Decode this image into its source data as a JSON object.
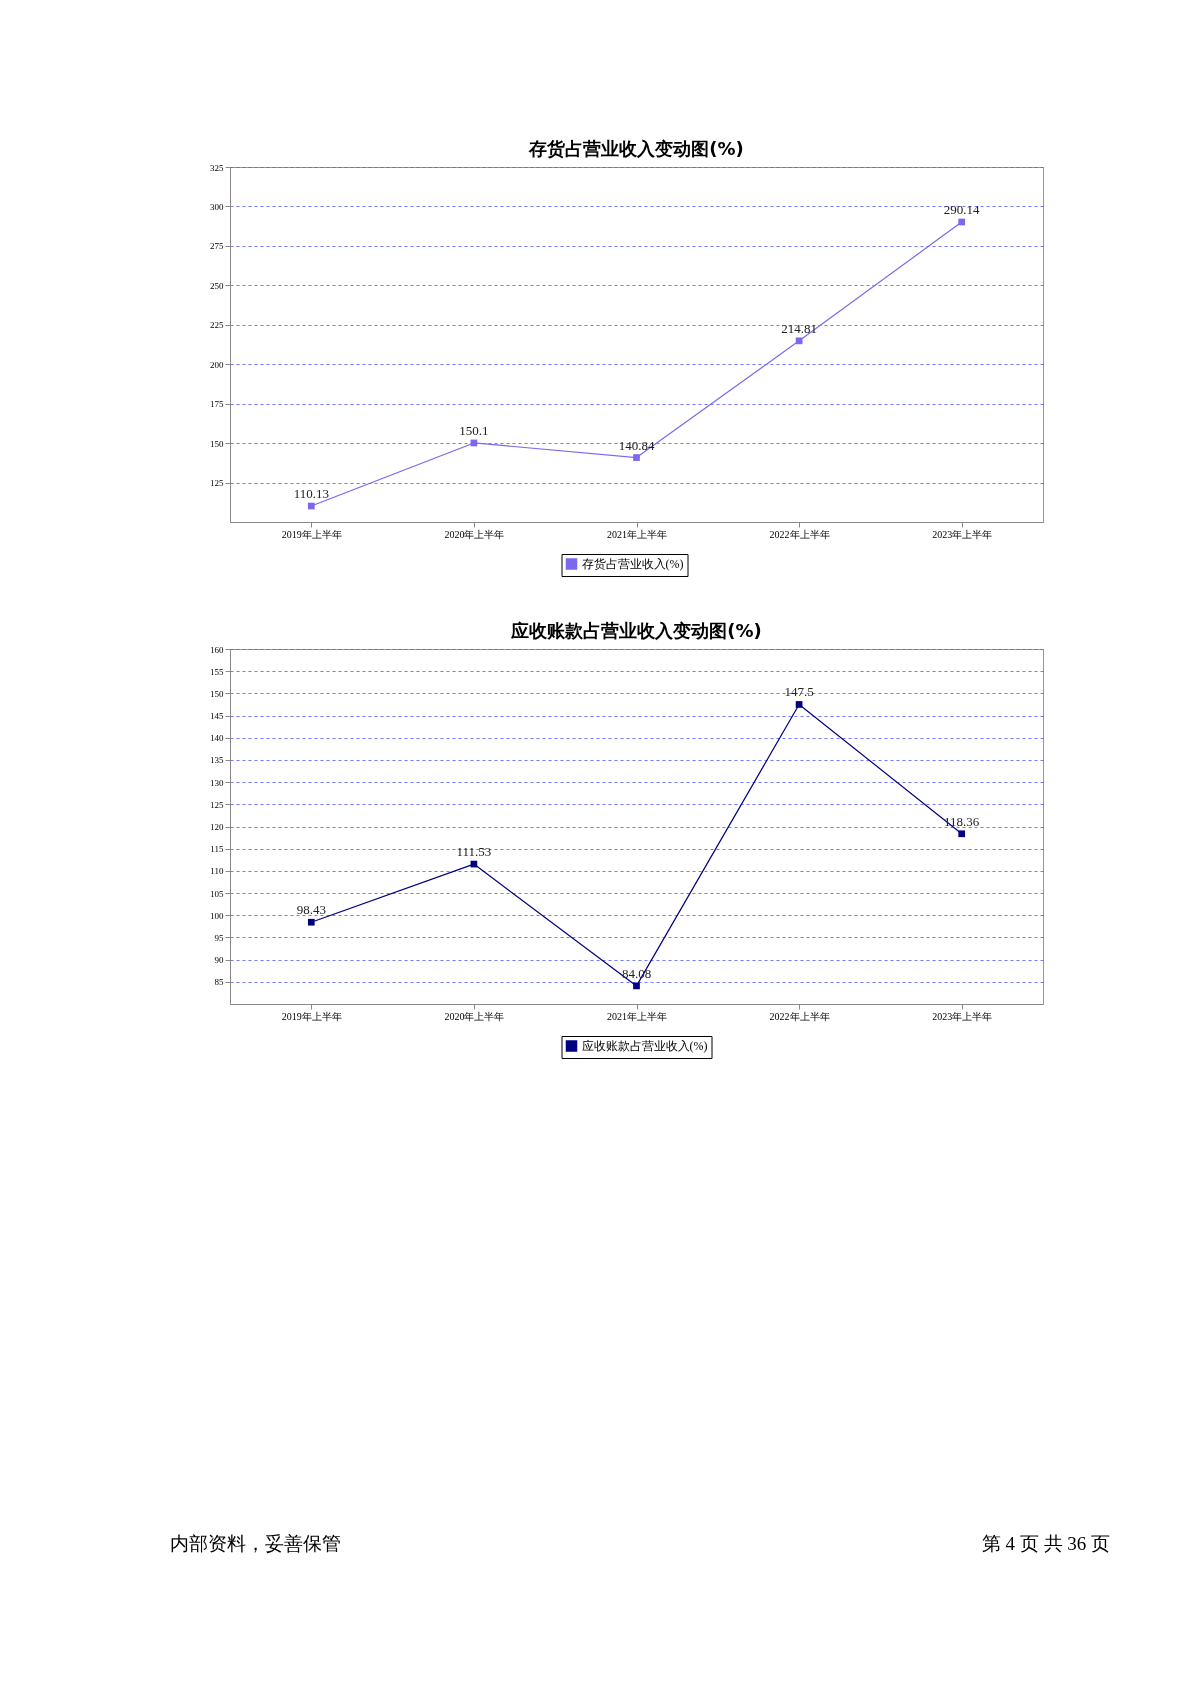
{
  "chart_data": [
    {
      "type": "line",
      "title": "存货占营业收入变动图(%)",
      "categories": [
        "2019年上半年",
        "2020年上半年",
        "2021年上半年",
        "2022年上半年",
        "2023年上半年"
      ],
      "series": [
        {
          "name": "存货占营业收入(%)",
          "color": "#7b68ee",
          "values": [
            110.13,
            150.1,
            140.84,
            214.81,
            290.14
          ]
        }
      ],
      "ylim": [
        100,
        325
      ],
      "yticks": [
        125,
        150,
        175,
        200,
        225,
        250,
        275,
        300,
        325
      ],
      "grid": "y",
      "legend": "bottom",
      "marker": "square",
      "data_labels": true
    },
    {
      "type": "line",
      "title": "应收账款占营业收入变动图(%)",
      "categories": [
        "2019年上半年",
        "2020年上半年",
        "2021年上半年",
        "2022年上半年",
        "2023年上半年"
      ],
      "series": [
        {
          "name": "应收账款占营业收入(%)",
          "color": "#000080",
          "values": [
            98.43,
            111.53,
            84.08,
            147.5,
            118.36
          ]
        }
      ],
      "ylim": [
        80,
        160
      ],
      "yticks": [
        85,
        90,
        95,
        100,
        105,
        110,
        115,
        120,
        125,
        130,
        135,
        140,
        145,
        150,
        155,
        160
      ],
      "grid": "y",
      "legend": "bottom",
      "marker": "square",
      "data_labels": true,
      "annotations": [
        "内部资料，妥善保管",
        "第 4 页   共 36 页"
      ]
    }
  ]
}
